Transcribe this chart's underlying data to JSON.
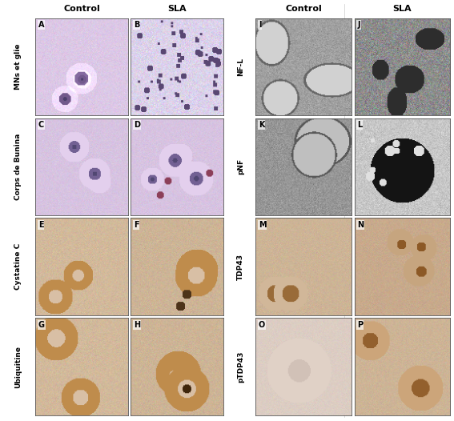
{
  "fig_width": 5.67,
  "fig_height": 5.26,
  "dpi": 100,
  "bg_color": "#ffffff",
  "left_col_headers": [
    "Control",
    "SLA"
  ],
  "right_col_headers": [
    "Control",
    "SLA"
  ],
  "left_row_labels": [
    "MNs et glie",
    "Corps de Bunina",
    "Cystatine C",
    "Ubiquitine"
  ],
  "right_row_labels": [
    "NF-L",
    "pNF",
    "TDP43",
    "pTDP43"
  ],
  "panels_left": [
    [
      "A",
      "B"
    ],
    [
      "C",
      "D"
    ],
    [
      "E",
      "F"
    ],
    [
      "G",
      "H"
    ]
  ],
  "panels_right": [
    [
      "I",
      "J"
    ],
    [
      "K",
      "L"
    ],
    [
      "M",
      "N"
    ],
    [
      "O",
      "P"
    ]
  ],
  "header_fontsize": 8,
  "label_fontsize": 6.5,
  "panel_letter_fontsize": 7,
  "panel_configs": {
    "A": {
      "base_color": [
        220,
        200,
        230
      ],
      "style": "hne",
      "brightness": 1.0
    },
    "B": {
      "base_color": [
        220,
        210,
        235
      ],
      "style": "hne_sparse",
      "brightness": 1.05
    },
    "C": {
      "base_color": [
        215,
        195,
        225
      ],
      "style": "hne_cells",
      "brightness": 1.0
    },
    "D": {
      "base_color": [
        215,
        195,
        225
      ],
      "style": "hne_cells2",
      "brightness": 1.0
    },
    "E": {
      "base_color": [
        210,
        185,
        155
      ],
      "style": "ihc_brown",
      "brightness": 1.0
    },
    "F": {
      "base_color": [
        205,
        180,
        150
      ],
      "style": "ihc_brown2",
      "brightness": 1.0
    },
    "G": {
      "base_color": [
        210,
        185,
        155
      ],
      "style": "ihc_brown",
      "brightness": 1.0
    },
    "H": {
      "base_color": [
        205,
        180,
        150
      ],
      "style": "ihc_brown3",
      "brightness": 1.0
    },
    "I": {
      "base_color": [
        160,
        160,
        160
      ],
      "style": "em_gray",
      "brightness": 1.0
    },
    "J": {
      "base_color": [
        140,
        140,
        140
      ],
      "style": "em_gray2",
      "brightness": 0.95
    },
    "K": {
      "base_color": [
        150,
        150,
        150
      ],
      "style": "em_gray3",
      "brightness": 1.0
    },
    "L": {
      "base_color": [
        200,
        200,
        200
      ],
      "style": "em_dark",
      "brightness": 1.0
    },
    "M": {
      "base_color": [
        205,
        180,
        150
      ],
      "style": "ihc_tdp",
      "brightness": 1.05
    },
    "N": {
      "base_color": [
        200,
        170,
        140
      ],
      "style": "ihc_tdp2",
      "brightness": 1.0
    },
    "O": {
      "base_color": [
        220,
        205,
        195
      ],
      "style": "ihc_pale",
      "brightness": 1.1
    },
    "P": {
      "base_color": [
        205,
        180,
        150
      ],
      "style": "ihc_tdp3",
      "brightness": 1.0
    }
  }
}
